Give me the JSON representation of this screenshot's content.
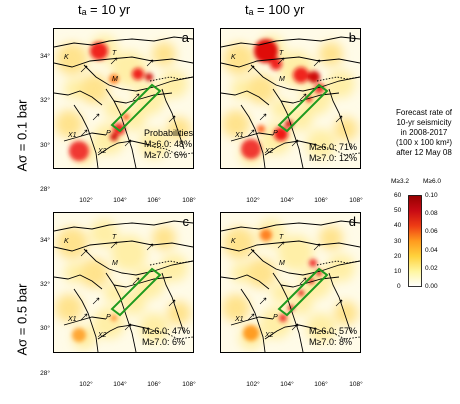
{
  "columns": [
    {
      "label": "tₐ = 10 yr"
    },
    {
      "label": "tₐ = 100 yr"
    }
  ],
  "rows": [
    {
      "label": "Aσ = 0.1 bar"
    },
    {
      "label": "Aσ = 0.5 bar"
    }
  ],
  "axes": {
    "lat_ticks": [
      "34°",
      "32°",
      "30°",
      "28°"
    ],
    "lon_ticks": [
      "102°",
      "104°",
      "106°",
      "108°"
    ]
  },
  "map_labels": {
    "K": "K",
    "T": "T",
    "M": "M",
    "X1": "X1",
    "P": "P",
    "X2": "X2"
  },
  "panels": [
    {
      "id": "a",
      "label": "a",
      "prob_title": "Probabilities",
      "prob_lines": [
        "M≥6.0: 48%",
        "M≥7.0:  6%"
      ]
    },
    {
      "id": "b",
      "label": "b",
      "prob_title": "",
      "prob_lines": [
        "M≥6.0: 71%",
        "M≥7.0: 12%"
      ]
    },
    {
      "id": "c",
      "label": "c",
      "prob_title": "",
      "prob_lines": [
        "M≥6.0: 47%",
        "M≥7.0:  6%"
      ]
    },
    {
      "id": "d",
      "label": "d",
      "prob_title": "",
      "prob_lines": [
        "M≥6.0: 57%",
        "M≥7.0:  8%"
      ]
    }
  ],
  "colorbar": {
    "title_lines": [
      "Forecast rate of",
      "10-yr seismicity",
      "in 2008-2017",
      "(100 x 100 km²)",
      "after 12 May 08"
    ],
    "unit_left": "M≥3.2",
    "unit_right": "M≥6.0",
    "left_ticks": [
      "60",
      "50",
      "40",
      "30",
      "20",
      "10",
      "0"
    ],
    "right_ticks": [
      "0.10",
      "0.08",
      "0.06",
      "0.04",
      "0.02",
      "0.00"
    ],
    "colors": [
      "#ffffff",
      "#fff6a0",
      "#ffd23c",
      "#ff9a1e",
      "#ee3c14",
      "#c80a14",
      "#960000"
    ]
  },
  "colors": {
    "fault": "#000000",
    "rupture_box": "#1f9a1f",
    "background": "#fffbe8"
  }
}
